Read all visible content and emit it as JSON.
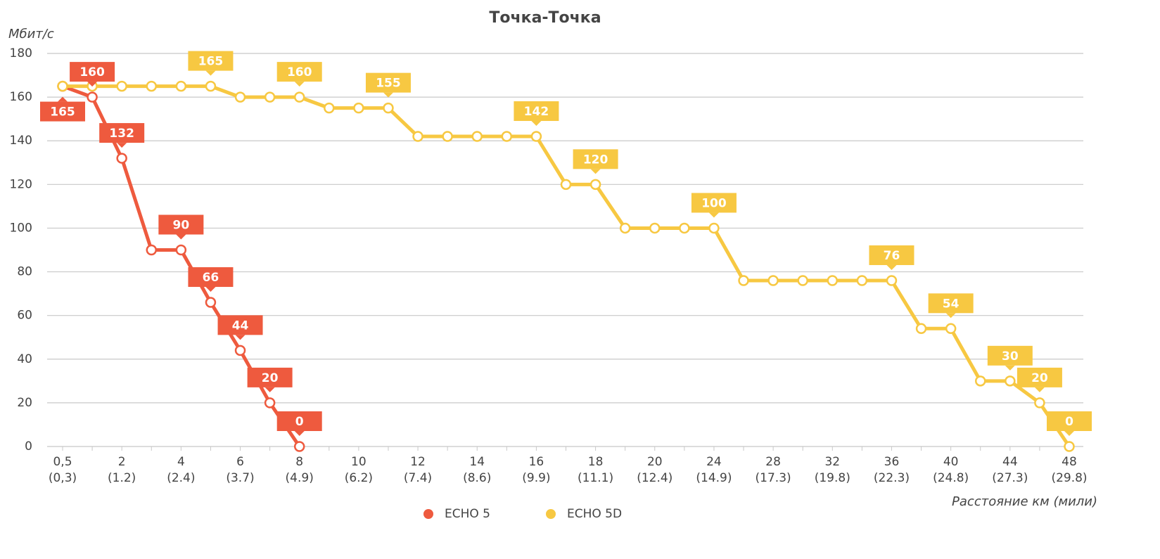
{
  "chart_data": {
    "type": "line",
    "title": "Точка-Точка",
    "y_label": "Мбит/с",
    "x_label": "Расстояние км (мили)",
    "categories": [
      "0,5",
      null,
      "2",
      null,
      "4",
      null,
      "6",
      null,
      "8",
      null,
      "10",
      null,
      "12",
      null,
      "14",
      null,
      "16",
      null,
      "18",
      null,
      "20",
      null,
      "24",
      null,
      "28",
      null,
      "32",
      null,
      "36",
      null,
      "40",
      null,
      "44",
      null,
      "48"
    ],
    "categories_secondary": [
      "(0,3)",
      null,
      "(1.2)",
      null,
      "(2.4)",
      null,
      "(3.7)",
      null,
      "(4.9)",
      null,
      "(6.2)",
      null,
      "(7.4)",
      null,
      "(8.6)",
      null,
      "(9.9)",
      null,
      "(11.1)",
      null,
      "(12.4)",
      null,
      "(14.9)",
      null,
      "(17.3)",
      null,
      "(19.8)",
      null,
      "(22.3)",
      null,
      "(24.8)",
      null,
      "(27.3)",
      null,
      "(29.8)"
    ],
    "series": [
      {
        "name": "ECHO 5",
        "color": "#ee5a3e",
        "values": [
          165,
          160,
          132,
          90,
          90,
          66,
          44,
          20,
          0,
          null,
          null,
          null,
          null,
          null,
          null,
          null,
          null,
          null,
          null,
          null,
          null,
          null,
          null,
          null,
          null,
          null,
          null,
          null,
          null,
          null,
          null,
          null,
          null,
          null,
          null
        ]
      },
      {
        "name": "ECHO 5D",
        "color": "#f7c842",
        "values": [
          165,
          165,
          165,
          165,
          165,
          165,
          160,
          160,
          160,
          155,
          155,
          155,
          142,
          142,
          142,
          142,
          142,
          120,
          120,
          100,
          100,
          100,
          100,
          76,
          76,
          76,
          76,
          76,
          76,
          54,
          54,
          30,
          30,
          20,
          0
        ]
      }
    ],
    "ylim": [
      0,
      180
    ],
    "yticks": [
      0,
      20,
      40,
      60,
      80,
      100,
      120,
      140,
      160,
      180
    ],
    "grid": true,
    "legend": "bottom"
  }
}
